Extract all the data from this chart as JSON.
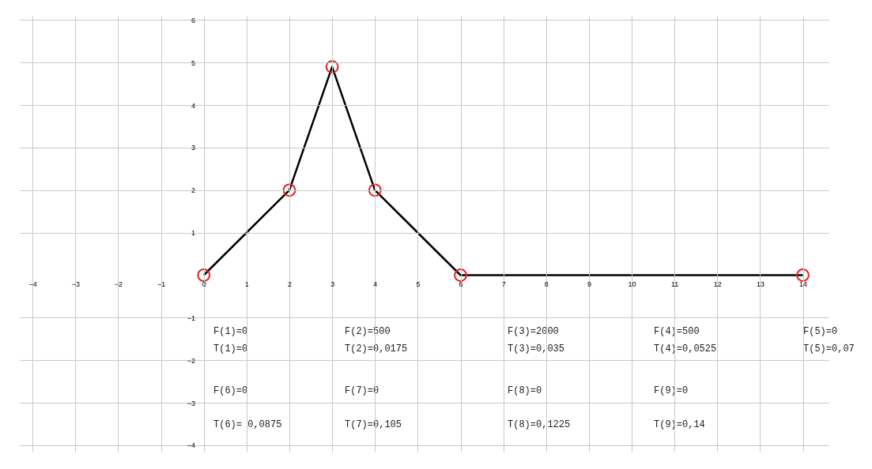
{
  "chart_data": {
    "type": "line",
    "x": [
      0,
      2,
      3,
      4,
      6,
      14
    ],
    "series": [
      {
        "type": "line",
        "color": "#000000",
        "values": [
          0,
          2,
          4.9,
          2,
          0,
          0
        ],
        "marker": "none"
      },
      {
        "type": "scatter",
        "color": "#e0202a",
        "values": [
          0,
          2,
          4.9,
          2,
          0,
          0
        ],
        "marker": "circle"
      }
    ],
    "xlim": [
      -4.3,
      14.6
    ],
    "ylim": [
      -4.15,
      6.1
    ],
    "xticks": [
      -4,
      -3,
      -2,
      -1,
      0,
      1,
      2,
      3,
      4,
      5,
      6,
      7,
      8,
      9,
      10,
      11,
      12,
      13,
      14
    ],
    "yticks": [
      -4,
      -3,
      -2,
      -1,
      1,
      2,
      3,
      4,
      5,
      6
    ],
    "grid": true,
    "annotations": [
      "F(1)=0",
      "F(2)=500",
      "F(3)=2000",
      "F(4)=500",
      "F(5)=0",
      "T(1)=0",
      "T(2)=0,0175",
      "T(3)=0,035",
      "T(4)=0,0525",
      "T(5)=0,07",
      "F(6)=0",
      "F(7)=0",
      "F(8)=0",
      "F(9)=0",
      "T(6)= 0,0875",
      "T(7)=0,105",
      "T(8)=0,1225",
      "T(9)=0,14"
    ]
  }
}
